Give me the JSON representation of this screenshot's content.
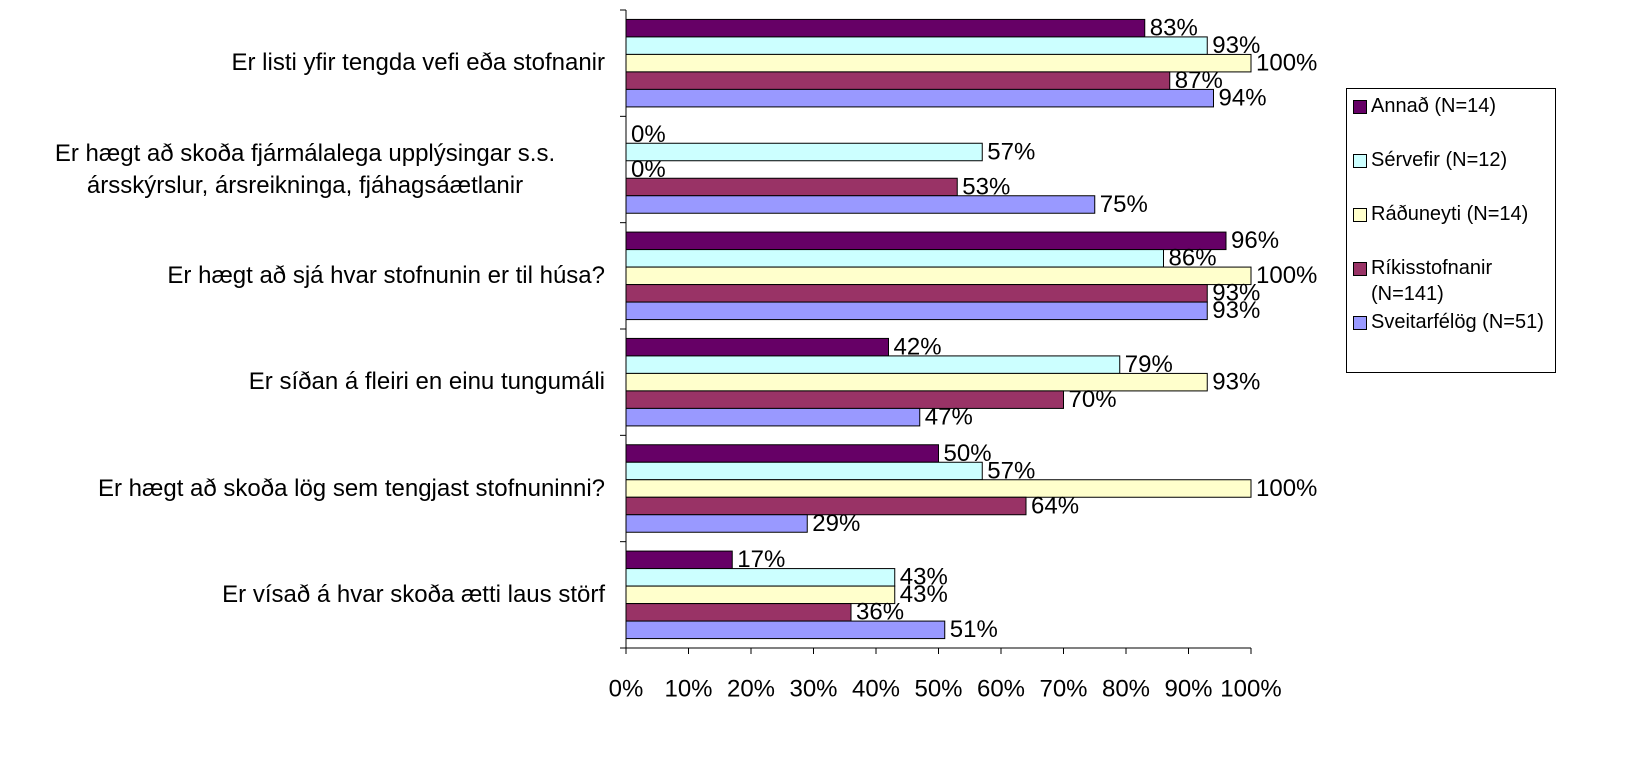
{
  "chart_data": {
    "type": "hbar",
    "categories": [
      "Er listi yfir tengda vefi eða stofnanir",
      "Er hægt að skoða fjármálalega upplýsingar s.s. ársskýrslur, ársreikninga, fjáhagsáætlanir",
      "Er hægt að sjá hvar stofnunin er til húsa?",
      "Er síðan á fleiri en einu tungumáli",
      "Er hægt að skoða lög sem tengjast stofnuninni?",
      "Er vísað á hvar skoða ætti laus störf"
    ],
    "series": [
      {
        "name": "Annað (N=14)",
        "color": "#660066",
        "values": [
          83,
          0,
          96,
          42,
          50,
          17
        ],
        "value_labels": [
          "83%",
          "0%",
          "96%",
          "42%",
          "50%",
          "17%"
        ]
      },
      {
        "name": "Sérvefir (N=12)",
        "color": "#ccffff",
        "values": [
          93,
          57,
          86,
          79,
          57,
          43
        ],
        "value_labels": [
          "93%",
          "57%",
          "86%",
          "79%",
          "57%",
          "43%"
        ]
      },
      {
        "name": "Ráðuneyti (N=14)",
        "color": "#ffffcc",
        "values": [
          100,
          0,
          100,
          93,
          100,
          43
        ],
        "value_labels": [
          "100%",
          "0%",
          "100%",
          "93%",
          "100%",
          "43%"
        ]
      },
      {
        "name": "Ríkisstofnanir (N=141)",
        "color": "#993366",
        "values": [
          87,
          53,
          93,
          70,
          64,
          36
        ],
        "value_labels": [
          "87%",
          "53%",
          "93%",
          "70%",
          "64%",
          "36%"
        ]
      },
      {
        "name": "Sveitarfélög (N=51)",
        "color": "#9999ff",
        "values": [
          94,
          75,
          93,
          47,
          29,
          51
        ],
        "value_labels": [
          "94%",
          "75%",
          "93%",
          "47%",
          "29%",
          "51%"
        ]
      }
    ],
    "xlim": [
      0,
      100
    ],
    "xticks": [
      {
        "value": 0,
        "label": "0%"
      },
      {
        "value": 10,
        "label": "10%"
      },
      {
        "value": 20,
        "label": "20%"
      },
      {
        "value": 30,
        "label": "30%"
      },
      {
        "value": 40,
        "label": "40%"
      },
      {
        "value": 50,
        "label": "50%"
      },
      {
        "value": 60,
        "label": "60%"
      },
      {
        "value": 70,
        "label": "70%"
      },
      {
        "value": 80,
        "label": "80%"
      },
      {
        "value": 90,
        "label": "90%"
      },
      {
        "value": 100,
        "label": "100%"
      }
    ],
    "legend": "right",
    "grid": false
  }
}
